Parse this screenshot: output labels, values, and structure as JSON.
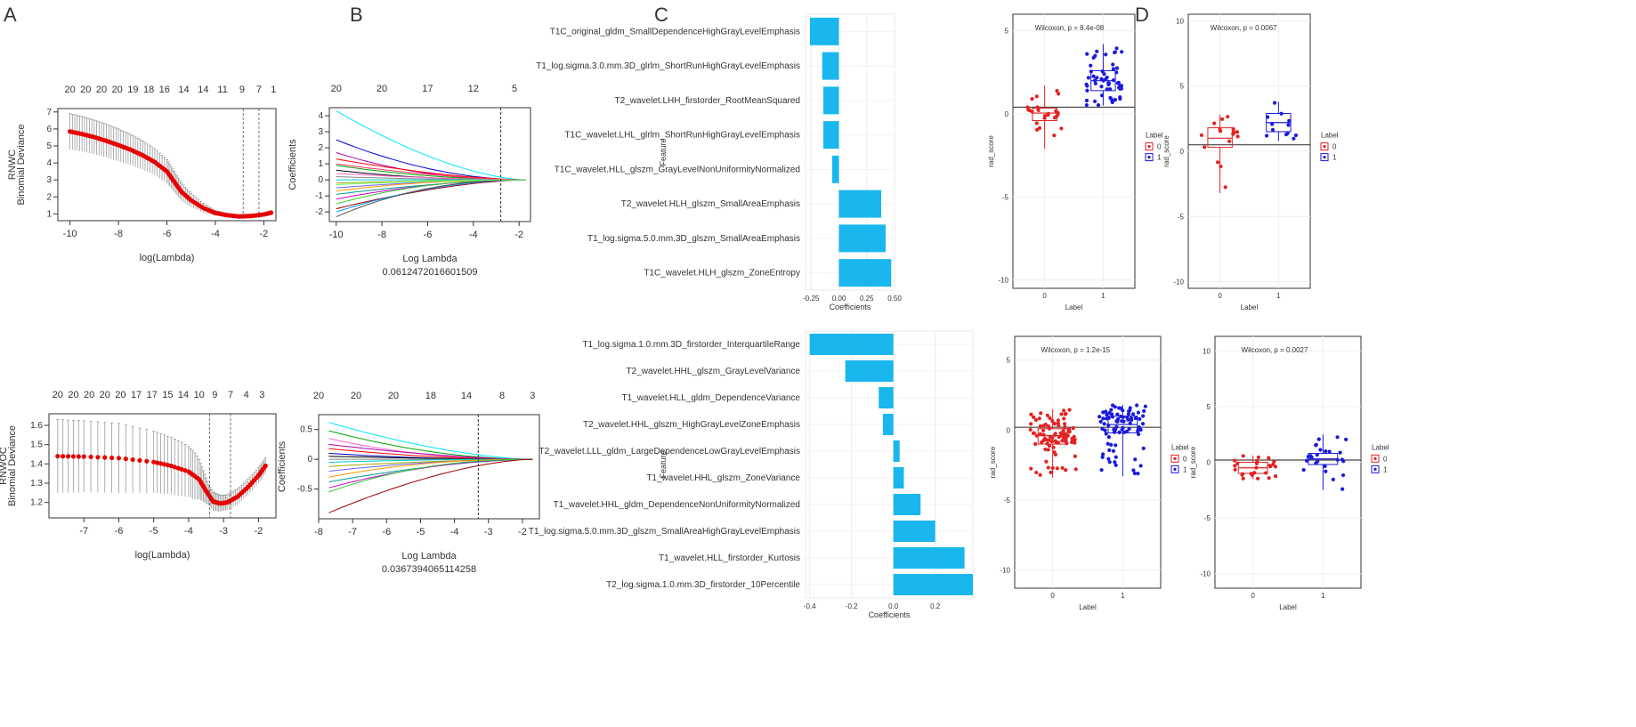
{
  "panel_letters": [
    "A",
    "B",
    "C",
    "D"
  ],
  "chart_data": [
    {
      "id": "A-top",
      "type": "line",
      "ylabel_top": "RNWC",
      "ylabel": "Binomial Deviance",
      "xlabel": "log(Lambda)",
      "xlim": [
        -10.5,
        -1.5
      ],
      "ylim": [
        0.6,
        7.2
      ],
      "xticks": [
        -10,
        -8,
        -6,
        -4,
        -2
      ],
      "yticks": [
        1,
        2,
        3,
        4,
        5,
        6,
        7
      ],
      "top_ticks": [
        {
          "x": -10,
          "label": "20"
        },
        {
          "x": -9.35,
          "label": "20"
        },
        {
          "x": -8.7,
          "label": "20"
        },
        {
          "x": -8.05,
          "label": "20"
        },
        {
          "x": -7.4,
          "label": "19"
        },
        {
          "x": -6.75,
          "label": "18"
        },
        {
          "x": -6.1,
          "label": "16"
        },
        {
          "x": -5.3,
          "label": "14"
        },
        {
          "x": -4.5,
          "label": "14"
        },
        {
          "x": -3.7,
          "label": "11"
        },
        {
          "x": -2.9,
          "label": "9"
        },
        {
          "x": -2.2,
          "label": "7"
        },
        {
          "x": -1.6,
          "label": "1"
        }
      ],
      "vlines": [
        -2.85,
        -2.2
      ],
      "curve": [
        [
          -10,
          5.85
        ],
        [
          -9.5,
          5.7
        ],
        [
          -9,
          5.52
        ],
        [
          -8.5,
          5.3
        ],
        [
          -8,
          5.05
        ],
        [
          -7.5,
          4.78
        ],
        [
          -7,
          4.45
        ],
        [
          -6.5,
          4.05
        ],
        [
          -6,
          3.5
        ],
        [
          -5.7,
          2.9
        ],
        [
          -5.4,
          2.3
        ],
        [
          -5,
          1.8
        ],
        [
          -4.5,
          1.35
        ],
        [
          -4,
          1.05
        ],
        [
          -3.5,
          0.92
        ],
        [
          -3,
          0.85
        ],
        [
          -2.5,
          0.88
        ],
        [
          -2,
          0.97
        ],
        [
          -1.7,
          1.07
        ]
      ],
      "band": [
        [
          -10,
          1.05
        ],
        [
          -9,
          1.0
        ],
        [
          -8,
          0.95
        ],
        [
          -7,
          0.85
        ],
        [
          -6,
          0.7
        ],
        [
          -5,
          0.4
        ],
        [
          -4,
          0.15
        ],
        [
          -3,
          0.05
        ],
        [
          -2,
          0.08
        ],
        [
          -1.7,
          0.1
        ]
      ]
    },
    {
      "id": "A-bottom",
      "type": "line",
      "ylabel_top": "RNWOC",
      "ylabel": "Binomial Deviance",
      "xlabel": "log(Lambda)",
      "xlim": [
        -8,
        -1.5
      ],
      "ylim": [
        1.12,
        1.66
      ],
      "xticks": [
        -7,
        -6,
        -5,
        -4,
        -3,
        -2
      ],
      "yticks": [
        1.2,
        1.3,
        1.4,
        1.5,
        1.6
      ],
      "top_ticks": [
        {
          "x": -7.75,
          "label": "20"
        },
        {
          "x": -7.3,
          "label": "20"
        },
        {
          "x": -6.85,
          "label": "20"
        },
        {
          "x": -6.4,
          "label": "20"
        },
        {
          "x": -5.95,
          "label": "20"
        },
        {
          "x": -5.5,
          "label": "17"
        },
        {
          "x": -5.05,
          "label": "17"
        },
        {
          "x": -4.6,
          "label": "15"
        },
        {
          "x": -4.15,
          "label": "14"
        },
        {
          "x": -3.7,
          "label": "10"
        },
        {
          "x": -3.25,
          "label": "9"
        },
        {
          "x": -2.8,
          "label": "7"
        },
        {
          "x": -2.35,
          "label": "4"
        },
        {
          "x": -1.9,
          "label": "3"
        }
      ],
      "vlines": [
        -3.4,
        -2.8
      ],
      "curve": [
        [
          -7.75,
          1.44
        ],
        [
          -7,
          1.438
        ],
        [
          -6,
          1.43
        ],
        [
          -5,
          1.41
        ],
        [
          -4.5,
          1.39
        ],
        [
          -4,
          1.36
        ],
        [
          -3.7,
          1.32
        ],
        [
          -3.5,
          1.26
        ],
        [
          -3.3,
          1.205
        ],
        [
          -3.1,
          1.195
        ],
        [
          -2.9,
          1.2
        ],
        [
          -2.6,
          1.23
        ],
        [
          -2.3,
          1.28
        ],
        [
          -2,
          1.34
        ],
        [
          -1.8,
          1.39
        ]
      ],
      "band": [
        [
          -7.75,
          0.19
        ],
        [
          -6,
          0.18
        ],
        [
          -5,
          0.16
        ],
        [
          -4.2,
          0.14
        ],
        [
          -3.8,
          0.12
        ],
        [
          -3.4,
          0.05
        ],
        [
          -3,
          0.04
        ],
        [
          -2.5,
          0.04
        ],
        [
          -1.8,
          0.04
        ]
      ]
    },
    {
      "id": "B-top",
      "type": "line",
      "ylabel": "Coefficients",
      "xlabel": "Log Lambda",
      "subtitle": "0.0612472016601509",
      "xlim": [
        -10.3,
        -1.5
      ],
      "ylim": [
        -2.6,
        4.5
      ],
      "xticks": [
        -10,
        -8,
        -6,
        -4,
        -2
      ],
      "yticks": [
        -2,
        -1,
        0,
        1,
        2,
        3,
        4
      ],
      "top_ticks": [
        {
          "x": -10,
          "label": "20"
        },
        {
          "x": -8,
          "label": "20"
        },
        {
          "x": -6,
          "label": "17"
        },
        {
          "x": -4,
          "label": "12"
        },
        {
          "x": -2.2,
          "label": "5"
        }
      ],
      "vline": -2.8,
      "colors": [
        "#00e5ff",
        "#0000cc",
        "#aa00aa",
        "#ff0000",
        "#00aa00",
        "#000000",
        "#ff66cc",
        "#888888",
        "#00cccc",
        "#aaaa00",
        "#6666ff",
        "#ff9900",
        "#009999",
        "#cc00cc",
        "#33cc33",
        "#990000",
        "#0099ff",
        "#555555",
        "#ff3366",
        "#66ff66"
      ],
      "starts": [
        4.3,
        2.5,
        1.7,
        1.3,
        0.9,
        0.6,
        0.4,
        0.2,
        0,
        -0.2,
        -0.5,
        -0.7,
        -0.9,
        -1.2,
        -1.5,
        -1.8,
        -2.0,
        -2.3,
        1.0,
        -0.3
      ]
    },
    {
      "id": "B-bottom",
      "type": "line",
      "ylabel": "Coefficients",
      "xlabel": "Log Lambda",
      "subtitle": "0.0367394065114258",
      "xlim": [
        -8,
        -1.5
      ],
      "ylim": [
        -1.0,
        0.75
      ],
      "xticks": [
        -8,
        -7,
        -6,
        -5,
        -4,
        -3,
        -2
      ],
      "yticks": [
        -0.5,
        0,
        0.5
      ],
      "top_ticks": [
        {
          "x": -8,
          "label": "20"
        },
        {
          "x": -6.9,
          "label": "20"
        },
        {
          "x": -5.8,
          "label": "20"
        },
        {
          "x": -4.7,
          "label": "18"
        },
        {
          "x": -3.65,
          "label": "14"
        },
        {
          "x": -2.6,
          "label": "8"
        },
        {
          "x": -1.7,
          "label": "3"
        }
      ],
      "vline": -3.3,
      "colors": [
        "#00e5ff",
        "#00aa00",
        "#ff66cc",
        "#aa00aa",
        "#ff0000",
        "#0000cc",
        "#000000",
        "#888888",
        "#00cccc",
        "#aaaa00",
        "#6666ff",
        "#ff9900",
        "#009999",
        "#cc00cc",
        "#33cc33",
        "#990000"
      ],
      "starts": [
        0.62,
        0.48,
        0.35,
        0.25,
        0.18,
        0.1,
        0.05,
        0,
        -0.05,
        -0.12,
        -0.2,
        -0.3,
        -0.38,
        -0.48,
        -0.55,
        -0.9
      ]
    },
    {
      "id": "C-top",
      "type": "bar",
      "orientation": "horizontal",
      "xlabel": "Coefficients",
      "ylabel": "Feature",
      "xlim": [
        -0.3,
        0.5
      ],
      "xticks": [
        -0.25,
        0.0,
        0.25,
        0.5
      ],
      "xtick_labels": [
        "-0.25",
        "0.00",
        "0.25",
        "0.50"
      ],
      "categories": [
        "T1C_original_gldm_SmallDependenceHighGrayLevelEmphasis",
        "T1_log.sigma.3.0.mm.3D_glrlm_ShortRunHighGrayLevelEmphasis",
        "T2_wavelet.LHH_firstorder_RootMeanSquared",
        "T1C_wavelet.LHL_glrlm_ShortRunHighGrayLevelEmphasis",
        "T1C_wavelet.HLL_glszm_GrayLevelNonUniformityNormalized",
        "T2_wavelet.HLH_glszm_SmallAreaEmphasis",
        "T1_log.sigma.5.0.mm.3D_glszm_SmallAreaEmphasis",
        "T1C_wavelet.HLH_glszm_ZoneEntropy"
      ],
      "values": [
        -0.26,
        -0.15,
        -0.14,
        -0.14,
        -0.06,
        0.38,
        0.42,
        0.47
      ]
    },
    {
      "id": "C-bottom",
      "type": "bar",
      "orientation": "horizontal",
      "xlabel": "Coefficients",
      "ylabel": "Feature",
      "xlim": [
        -0.42,
        0.38
      ],
      "xticks": [
        -0.4,
        -0.2,
        0.0,
        0.2
      ],
      "xtick_labels": [
        "-0.4",
        "-0.2",
        "0.0",
        "0.2"
      ],
      "categories": [
        "T1_log.sigma.1.0.mm.3D_firstorder_InterquartileRange",
        "T2_wavelet.HHL_glszm_GrayLevelVariance",
        "T1_wavelet.HLL_gldm_DependenceVariance",
        "T2_wavelet.HHL_glszm_HighGrayLevelZoneEmphasis",
        "T2_wavelet.LLL_gldm_LargeDependenceLowGrayLevelEmphasis",
        "T1_wavelet.HHL_glszm_ZoneVariance",
        "T1_wavelet.HHL_gldm_DependenceNonUniformityNormalized",
        "T1_log.sigma.5.0.mm.3D_glszm_SmallAreaHighGrayLevelEmphasis",
        "T1_wavelet.HLL_firstorder_Kurtosis",
        "T2_log.sigma.1.0.mm.3D_firstorder_10Percentile"
      ],
      "values": [
        -0.4,
        -0.23,
        -0.07,
        -0.05,
        0.03,
        0.05,
        0.13,
        0.2,
        0.34,
        0.38
      ]
    },
    {
      "id": "D-tl",
      "type": "scatter",
      "subtype": "box",
      "title": "Wilcoxon, p = 8.4e-08",
      "xlabel": "Label",
      "ylabel": "rad_score",
      "ylim": [
        -10.5,
        6
      ],
      "yticks": [
        -10,
        -5,
        0,
        5
      ],
      "groups": [
        "0",
        "1"
      ],
      "hline": 0.4,
      "box": [
        {
          "q1": -0.4,
          "med": 0.05,
          "q3": 0.35,
          "lo": -2.1,
          "hi": 1.7
        },
        {
          "q1": 1.4,
          "med": 2.0,
          "q3": 2.6,
          "lo": 0.5,
          "hi": 4.2
        }
      ],
      "n": [
        24,
        55
      ],
      "seed": 11,
      "legend_title": "Label",
      "legend": [
        "0",
        "1"
      ]
    },
    {
      "id": "D-tr",
      "type": "scatter",
      "subtype": "box",
      "title": "Wilcoxon, p = 0.0067",
      "xlabel": "Label",
      "ylabel": "rad_score",
      "ylim": [
        -10.5,
        10.5
      ],
      "yticks": [
        -10,
        -5,
        0,
        5,
        10
      ],
      "groups": [
        "0",
        "1"
      ],
      "hline": 0.5,
      "box": [
        {
          "q1": 0.3,
          "med": 1.0,
          "q3": 1.8,
          "lo": -3.2,
          "hi": 2.8
        },
        {
          "q1": 1.5,
          "med": 2.2,
          "q3": 2.9,
          "lo": 0.8,
          "hi": 3.8
        }
      ],
      "n": [
        16,
        12
      ],
      "seed": 23,
      "legend_title": "Label",
      "legend": [
        "0",
        "1"
      ]
    },
    {
      "id": "D-bl",
      "type": "scatter",
      "subtype": "box",
      "title": "Wilcoxon, p = 1.2e-15",
      "xlabel": "Label",
      "ylabel": "rad_score",
      "ylim": [
        -11.3,
        6.7
      ],
      "yticks": [
        -10,
        -5,
        0,
        5
      ],
      "groups": [
        "0",
        "1"
      ],
      "hline": 0.2,
      "box": [
        {
          "q1": -1.0,
          "med": -0.4,
          "q3": 0.1,
          "lo": -3.4,
          "hi": 1.5
        },
        {
          "q1": -0.2,
          "med": 0.4,
          "q3": 1.0,
          "lo": -3.3,
          "hi": 1.8
        }
      ],
      "n": [
        95,
        85
      ],
      "seed": 37,
      "legend_title": "Label",
      "legend": [
        "0",
        "1"
      ]
    },
    {
      "id": "D-br",
      "type": "scatter",
      "subtype": "box",
      "title": "Wilcoxon, p = 0.0027",
      "xlabel": "Label",
      "ylabel": "rad_score",
      "ylim": [
        -11.3,
        11.3
      ],
      "yticks": [
        -10,
        -5,
        0,
        5,
        10
      ],
      "groups": [
        "0",
        "1"
      ],
      "hline": 0.2,
      "box": [
        {
          "q1": -1.0,
          "med": -0.5,
          "q3": 0.0,
          "lo": -1.5,
          "hi": 0.6
        },
        {
          "q1": -0.2,
          "med": 0.3,
          "q3": 0.8,
          "lo": -2.5,
          "hi": 2.5
        }
      ],
      "n": [
        25,
        25
      ],
      "seed": 51,
      "legend_title": "Label",
      "legend": [
        "0",
        "1"
      ]
    }
  ]
}
